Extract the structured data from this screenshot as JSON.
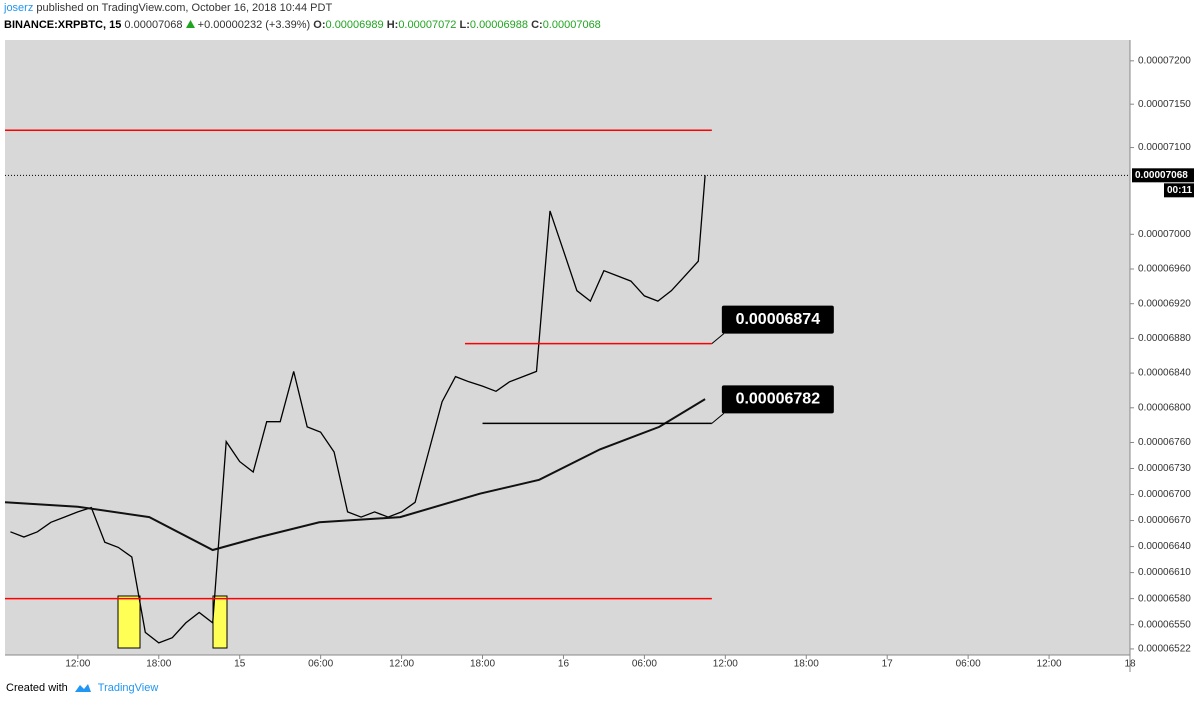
{
  "header": {
    "author": "joserz",
    "published": "published on TradingView.com, October 16, 2018 10:44 PDT",
    "symbol": "BINANCE:XRPBTC, 15",
    "last": "0.00007068",
    "change": "+0.00000232 (+3.39%)",
    "ohlc": [
      {
        "label": "O:",
        "value": "0.00006989"
      },
      {
        "label": "H:",
        "value": "0.00007072"
      },
      {
        "label": "L:",
        "value": "0.00006988"
      },
      {
        "label": "C:",
        "value": "0.00007068"
      }
    ]
  },
  "chart_data": {
    "type": "line",
    "grid": false,
    "xlim": [
      6.6,
      90
    ],
    "xticks": [
      {
        "value": 12,
        "label": "12:00"
      },
      {
        "value": 18,
        "label": "18:00"
      },
      {
        "value": 24,
        "label": "15"
      },
      {
        "value": 30,
        "label": "06:00"
      },
      {
        "value": 36,
        "label": "12:00"
      },
      {
        "value": 42,
        "label": "18:00"
      },
      {
        "value": 48,
        "label": "16"
      },
      {
        "value": 54,
        "label": "06:00"
      },
      {
        "value": 60,
        "label": "12:00"
      },
      {
        "value": 66,
        "label": "18:00"
      },
      {
        "value": 72,
        "label": "17"
      },
      {
        "value": 78,
        "label": "06:00"
      },
      {
        "value": 84,
        "label": "12:00"
      },
      {
        "value": 90,
        "label": "18"
      }
    ],
    "ylim": [
      6.515e-05,
      7.224e-05
    ],
    "yticks": [
      {
        "value": 7.2e-05,
        "label": "0.00007200"
      },
      {
        "value": 7.15e-05,
        "label": "0.00007150"
      },
      {
        "value": 7.1e-05,
        "label": "0.00007100"
      },
      {
        "value": 7e-05,
        "label": "0.00007000"
      },
      {
        "value": 6.96e-05,
        "label": "0.00006960"
      },
      {
        "value": 6.92e-05,
        "label": "0.00006920"
      },
      {
        "value": 6.88e-05,
        "label": "0.00006880"
      },
      {
        "value": 6.84e-05,
        "label": "0.00006840"
      },
      {
        "value": 6.8e-05,
        "label": "0.00006800"
      },
      {
        "value": 6.76e-05,
        "label": "0.00006760"
      },
      {
        "value": 6.73e-05,
        "label": "0.00006730"
      },
      {
        "value": 6.7e-05,
        "label": "0.00006700"
      },
      {
        "value": 6.67e-05,
        "label": "0.00006670"
      },
      {
        "value": 6.64e-05,
        "label": "0.00006640"
      },
      {
        "value": 6.61e-05,
        "label": "0.00006610"
      },
      {
        "value": 6.58e-05,
        "label": "0.00006580"
      },
      {
        "value": 6.55e-05,
        "label": "0.00006550"
      },
      {
        "value": 6.522e-05,
        "label": "0.00006522"
      }
    ],
    "series": [
      {
        "color": "#000000",
        "x": [
          7,
          8,
          9,
          10,
          11,
          12,
          13,
          14,
          15,
          16,
          17,
          18,
          19,
          20,
          21,
          22,
          23,
          24,
          25,
          26,
          27,
          28,
          29,
          30,
          31,
          32,
          33,
          34,
          35,
          36,
          37,
          38,
          39,
          40,
          41,
          42,
          43,
          44,
          45,
          46,
          47,
          48,
          49,
          50,
          51,
          52,
          53,
          54,
          55,
          56,
          57,
          58,
          58.5
        ],
        "values": [
          6.657e-05,
          6.651e-05,
          6.657e-05,
          6.668e-05,
          6.674e-05,
          6.68e-05,
          6.685e-05,
          6.645e-05,
          6.639e-05,
          6.628e-05,
          6.541e-05,
          6.529e-05,
          6.535e-05,
          6.552e-05,
          6.564e-05,
          6.552e-05,
          6.761e-05,
          6.738e-05,
          6.726e-05,
          6.784e-05,
          6.784e-05,
          6.842e-05,
          6.778e-05,
          6.772e-05,
          6.749e-05,
          6.68e-05,
          6.674e-05,
          6.68e-05,
          6.674e-05,
          6.68e-05,
          6.691e-05,
          6.749e-05,
          6.807e-05,
          6.836e-05,
          6.83e-05,
          6.825e-05,
          6.819e-05,
          6.83e-05,
          6.836e-05,
          6.842e-05,
          7.027e-05,
          6.981e-05,
          6.935e-05,
          6.923e-05,
          6.958e-05,
          6.952e-05,
          6.946e-05,
          6.929e-05,
          6.923e-05,
          6.935e-05,
          6.952e-05,
          6.969e-05,
          7.068e-05
        ]
      },
      {
        "color": "#111111",
        "x": [
          6.6,
          12,
          17.3,
          22,
          25.5,
          29.9,
          35.9,
          41.8,
          46.2,
          50.7,
          55.1,
          58.5
        ],
        "values": [
          6.691e-05,
          6.686e-05,
          6.674e-05,
          6.636e-05,
          6.651e-05,
          6.668e-05,
          6.674e-05,
          6.701e-05,
          6.717e-05,
          6.752e-05,
          6.778e-05,
          6.81e-05
        ]
      }
    ],
    "levels": [
      {
        "value": 7.12e-05,
        "color": "#ff0000",
        "x_start": 6.6,
        "x_end": 59
      },
      {
        "value": 6.874e-05,
        "color": "#ff0000",
        "x_start": 40.7,
        "x_end": 59,
        "label": "0.00006874"
      },
      {
        "value": 6.782e-05,
        "color": "#000000",
        "x_start": 42,
        "x_end": 59,
        "label": "0.00006782"
      },
      {
        "value": 6.58e-05,
        "color": "#ff0000",
        "x_start": 6.6,
        "x_end": 59
      }
    ],
    "last_price": {
      "value": 7.068e-05,
      "label": "0.00007068"
    },
    "countdown": "00:11"
  },
  "footer": {
    "prefix": "Created with",
    "brand": "TradingView"
  }
}
